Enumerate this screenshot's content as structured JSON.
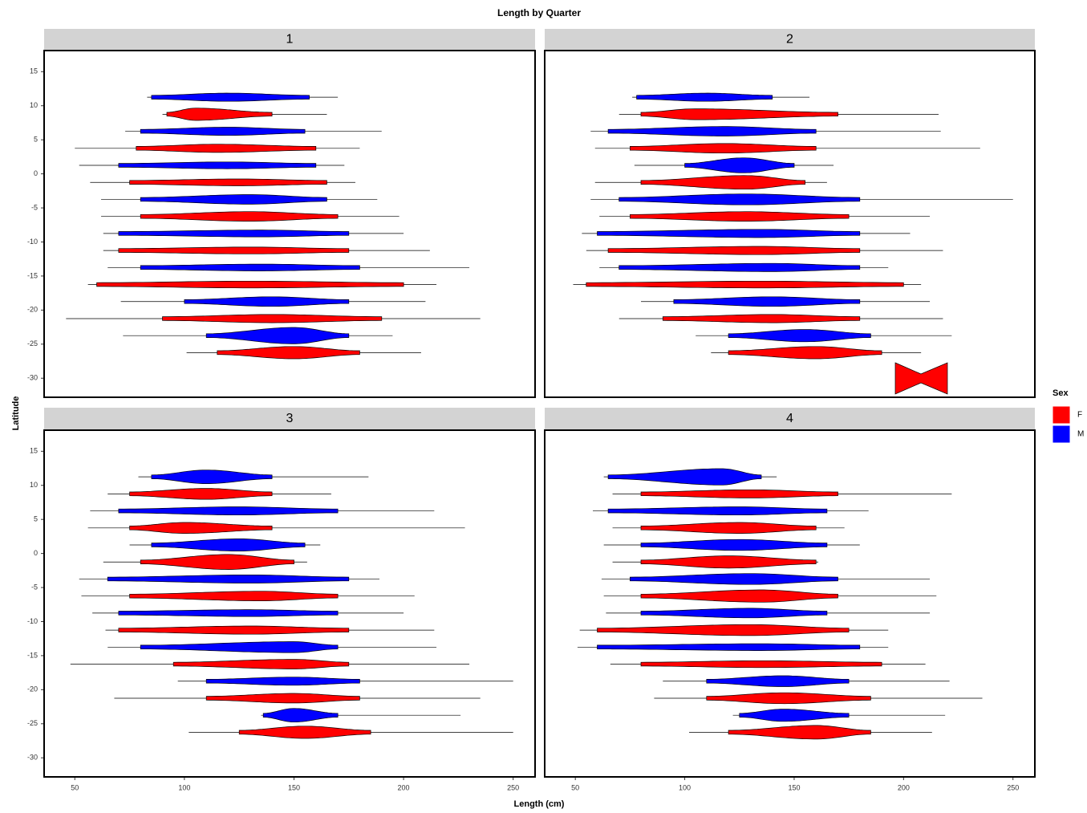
{
  "chart_data": {
    "type": "violin",
    "title": "Length by Quarter",
    "x_label": "Length (cm)",
    "y_label": "Latitude",
    "legend_title": "Sex",
    "xlim": [
      36,
      260
    ],
    "ylim": [
      -32.8,
      18.1
    ],
    "xticks": [
      50,
      100,
      150,
      200,
      250
    ],
    "yticks": [
      15,
      10,
      5,
      0,
      -5,
      -10,
      -15,
      -20,
      -25,
      -30
    ],
    "categories": [
      10,
      5,
      0,
      -5,
      -10,
      -15,
      -20,
      -25
    ],
    "series": [
      {
        "name": "F",
        "color": "#ff0000"
      },
      {
        "name": "M",
        "color": "#0000ff"
      }
    ],
    "facets": [
      {
        "label": "1",
        "values": [
          [
            [
              90,
              92,
              105,
              140,
              165,
              0.9
            ],
            [
              50,
              78,
              115,
              160,
              180,
              0.6
            ],
            [
              57,
              75,
              125,
              165,
              178,
              0.5
            ],
            [
              62,
              80,
              130,
              170,
              198,
              0.7
            ],
            [
              63,
              70,
              130,
              175,
              212,
              0.5
            ],
            [
              56,
              60,
              130,
              200,
              215,
              0.5
            ],
            [
              46,
              90,
              140,
              190,
              235,
              0.6
            ],
            [
              101,
              115,
              150,
              180,
              208,
              0.9
            ]
          ],
          [
            [
              83,
              85,
              120,
              157,
              170,
              0.6
            ],
            [
              73,
              80,
              120,
              155,
              190,
              0.6
            ],
            [
              52,
              70,
              120,
              160,
              173,
              0.5
            ],
            [
              62,
              80,
              130,
              165,
              188,
              0.7
            ],
            [
              63,
              70,
              135,
              175,
              200,
              0.5
            ],
            [
              65,
              80,
              135,
              180,
              230,
              0.5
            ],
            [
              71,
              100,
              140,
              175,
              210,
              0.7
            ],
            [
              72,
              110,
              150,
              175,
              195,
              1.2
            ]
          ]
        ]
      },
      {
        "label": "2",
        "values": [
          [
            [
              70,
              80,
              105,
              170,
              216,
              0.8
            ],
            [
              59,
              75,
              118,
              160,
              235,
              0.7
            ],
            [
              59,
              80,
              128,
              155,
              165,
              1.0
            ],
            [
              61,
              75,
              128,
              175,
              212,
              0.7
            ],
            [
              55,
              65,
              135,
              180,
              218,
              0.6
            ],
            [
              49,
              55,
              135,
              200,
              208,
              0.5
            ],
            [
              70,
              90,
              140,
              180,
              218,
              0.6
            ],
            [
              112,
              120,
              160,
              190,
              208,
              0.9
            ]
          ],
          [
            [
              76,
              78,
              110,
              140,
              157,
              0.6
            ],
            [
              57,
              65,
              118,
              160,
              217,
              0.7
            ],
            [
              77,
              100,
              127,
              150,
              168,
              1.1
            ],
            [
              57,
              70,
              128,
              180,
              250,
              0.8
            ],
            [
              53,
              60,
              135,
              180,
              203,
              0.6
            ],
            [
              61,
              70,
              140,
              180,
              193,
              0.6
            ],
            [
              80,
              95,
              140,
              180,
              212,
              0.7
            ],
            [
              105,
              120,
              155,
              185,
              222,
              0.9
            ]
          ]
        ]
      },
      {
        "label": "3",
        "values": [
          [
            [
              65,
              75,
              110,
              140,
              167,
              0.8
            ],
            [
              56,
              75,
              100,
              140,
              228,
              0.8
            ],
            [
              63,
              80,
              120,
              150,
              156,
              1.1
            ],
            [
              53,
              75,
              135,
              170,
              205,
              0.7
            ],
            [
              64,
              70,
              130,
              175,
              214,
              0.6
            ],
            [
              48,
              95,
              150,
              175,
              230,
              0.7
            ],
            [
              68,
              110,
              150,
              180,
              235,
              0.7
            ],
            [
              102,
              125,
              155,
              185,
              250,
              0.9
            ]
          ],
          [
            [
              79,
              85,
              110,
              140,
              184,
              1.0
            ],
            [
              57,
              70,
              125,
              170,
              214,
              0.6
            ],
            [
              75,
              85,
              125,
              155,
              162,
              0.9
            ],
            [
              52,
              65,
              130,
              175,
              189,
              0.6
            ],
            [
              58,
              70,
              130,
              170,
              200,
              0.5
            ],
            [
              65,
              80,
              150,
              170,
              215,
              0.8
            ],
            [
              97,
              110,
              150,
              180,
              250,
              0.6
            ],
            [
              135,
              136,
              150,
              170,
              226,
              1.0
            ]
          ]
        ]
      },
      {
        "label": "4",
        "values": [
          [
            [
              67,
              80,
              130,
              170,
              222,
              0.6
            ],
            [
              67,
              80,
              125,
              160,
              173,
              0.8
            ],
            [
              67,
              80,
              120,
              160,
              161,
              0.9
            ],
            [
              63,
              80,
              135,
              170,
              215,
              0.9
            ],
            [
              52,
              60,
              130,
              175,
              193,
              0.8
            ],
            [
              66,
              80,
              135,
              190,
              210,
              0.5
            ],
            [
              86,
              110,
              145,
              185,
              236,
              0.8
            ],
            [
              102,
              120,
              160,
              185,
              213,
              1.0
            ]
          ],
          [
            [
              63,
              65,
              117,
              135,
              142,
              1.2
            ],
            [
              58,
              65,
              125,
              165,
              184,
              0.6
            ],
            [
              63,
              80,
              125,
              165,
              180,
              0.8
            ],
            [
              62,
              75,
              130,
              170,
              212,
              0.8
            ],
            [
              64,
              80,
              130,
              165,
              212,
              0.7
            ],
            [
              51,
              60,
              135,
              180,
              193,
              0.5
            ],
            [
              90,
              110,
              145,
              175,
              221,
              0.8
            ],
            [
              122,
              125,
              145,
              175,
              219,
              0.9
            ]
          ]
        ]
      }
    ]
  }
}
